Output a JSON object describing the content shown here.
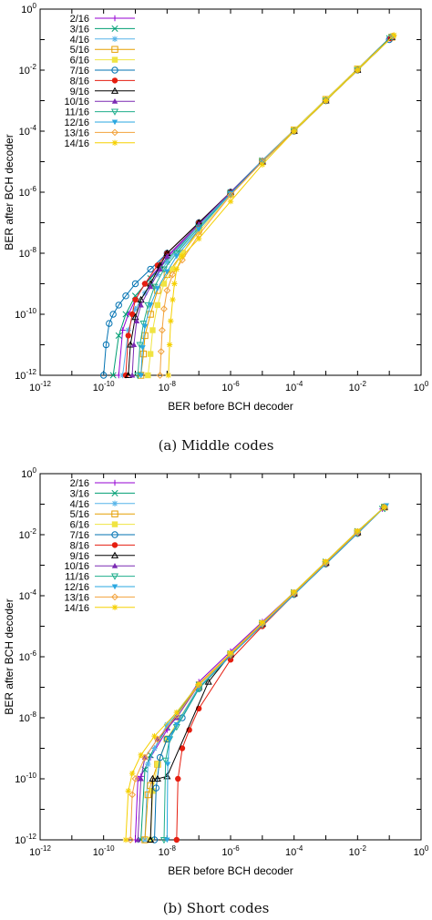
{
  "chart_data": [
    {
      "type": "line",
      "caption": "(a) Middle codes",
      "xlabel": "BER before BCH decoder",
      "ylabel": "BER after BCH decoder",
      "xscale": "log",
      "yscale": "log",
      "xlim": [
        1e-12,
        1
      ],
      "ylim": [
        1e-12,
        1
      ],
      "x_tick_labels": [
        "10-12",
        "10-10",
        "10-8",
        "10-6",
        "10-4",
        "10-2",
        "100"
      ],
      "y_tick_labels": [
        "10-12",
        "10-10",
        "10-8",
        "10-6",
        "10-4",
        "10-2",
        "100"
      ],
      "grid": false,
      "legend_position": "top-left",
      "series": [
        {
          "name": "2/16",
          "color": "#9400d3",
          "marker": "plus",
          "x": [
            3e-10,
            4e-10,
            6e-10,
            1e-09,
            2e-09,
            1e-08,
            1e-07,
            1e-06,
            1e-05,
            0.0001,
            0.001,
            0.01,
            0.1
          ],
          "y": [
            1e-12,
            3e-11,
            1e-10,
            3e-10,
            1e-09,
            7e-09,
            9e-08,
            1e-06,
            1.1e-05,
            0.00011,
            0.0011,
            0.011,
            0.11
          ]
        },
        {
          "name": "3/16",
          "color": "#009e73",
          "marker": "x",
          "x": [
            2e-10,
            3e-10,
            5e-10,
            1e-09,
            3e-09,
            1e-08,
            1e-07,
            1e-06,
            1e-05,
            0.0001,
            0.001,
            0.01,
            0.1
          ],
          "y": [
            1e-12,
            2e-11,
            1e-10,
            4e-10,
            1.5e-09,
            6e-09,
            8e-08,
            1e-06,
            1.1e-05,
            0.00011,
            0.0011,
            0.011,
            0.11
          ]
        },
        {
          "name": "4/16",
          "color": "#56b4e9",
          "marker": "star",
          "x": [
            4e-10,
            6e-10,
            1e-09,
            2e-09,
            5e-09,
            1e-08,
            1e-07,
            1e-06,
            1e-05,
            0.0001,
            0.001,
            0.01,
            0.12
          ],
          "y": [
            1e-12,
            3e-11,
            1.5e-10,
            5e-10,
            2e-09,
            5e-09,
            8e-08,
            1e-06,
            1.1e-05,
            0.00011,
            0.0011,
            0.011,
            0.12
          ]
        },
        {
          "name": "5/16",
          "color": "#e69f00",
          "marker": "square-open",
          "x": [
            1.5e-09,
            1.8e-09,
            2e-09,
            3e-09,
            5e-09,
            1e-08,
            3e-08,
            1e-07,
            1e-06,
            1e-05,
            0.0001,
            0.001,
            0.01,
            0.12
          ],
          "y": [
            1e-12,
            5e-12,
            2e-11,
            1e-10,
            6e-10,
            2e-09,
            1e-08,
            6e-08,
            9e-07,
            1e-05,
            0.00011,
            0.0011,
            0.011,
            0.12
          ]
        },
        {
          "name": "6/16",
          "color": "#f0e442",
          "marker": "square",
          "x": [
            2.5e-09,
            3e-09,
            3.5e-09,
            5e-09,
            8e-09,
            1.5e-08,
            3e-08,
            1e-07,
            1e-06,
            1e-05,
            0.0001,
            0.001,
            0.01,
            0.13
          ],
          "y": [
            1e-12,
            5e-12,
            3e-11,
            2e-10,
            1e-09,
            3e-09,
            1e-08,
            5e-08,
            8e-07,
            1e-05,
            0.00011,
            0.0011,
            0.011,
            0.13
          ]
        },
        {
          "name": "7/16",
          "color": "#0072b2",
          "marker": "circle-open",
          "x": [
            1e-10,
            1.2e-10,
            1.5e-10,
            2e-10,
            3e-10,
            5e-10,
            1e-09,
            3e-09,
            1e-08,
            1e-07,
            1e-06,
            1e-05,
            0.0001,
            0.001,
            0.01,
            0.1
          ],
          "y": [
            1e-12,
            1e-11,
            5e-11,
            1e-10,
            2e-10,
            4e-10,
            1e-09,
            3e-09,
            1e-08,
            1e-07,
            1e-06,
            1e-05,
            0.0001,
            0.001,
            0.01,
            0.1
          ]
        },
        {
          "name": "8/16",
          "color": "#e51e10",
          "marker": "circle",
          "x": [
            5e-10,
            6e-10,
            8e-10,
            1e-09,
            2e-09,
            5e-09,
            1e-08,
            1e-07,
            1e-06,
            1e-05,
            0.0001,
            0.001,
            0.01,
            0.11
          ],
          "y": [
            1e-12,
            2e-11,
            1e-10,
            3e-10,
            1e-09,
            4e-09,
            1e-08,
            1e-07,
            1e-06,
            1e-05,
            0.0001,
            0.001,
            0.01,
            0.11
          ]
        },
        {
          "name": "9/16",
          "color": "#000000",
          "marker": "triangle-open",
          "x": [
            6e-10,
            7e-10,
            1e-09,
            1.5e-09,
            3e-09,
            6e-09,
            1e-08,
            1e-07,
            1e-06,
            1e-05,
            0.0001,
            0.001,
            0.01,
            0.12
          ],
          "y": [
            1e-12,
            1e-11,
            8e-11,
            3e-10,
            1e-09,
            4e-09,
            1e-08,
            1e-07,
            1e-06,
            1e-05,
            0.0001,
            0.001,
            0.01,
            0.12
          ]
        },
        {
          "name": "10/16",
          "color": "#7b2ab3",
          "marker": "triangle",
          "x": [
            8e-10,
            9e-10,
            1.1e-09,
            1.5e-09,
            3e-09,
            6e-09,
            1e-08,
            1e-07,
            1e-06,
            1e-05,
            0.0001,
            0.001,
            0.01,
            0.12
          ],
          "y": [
            1e-12,
            1e-11,
            6e-11,
            2e-10,
            8e-10,
            3e-09,
            8e-09,
            9e-08,
            1e-06,
            1e-05,
            0.0001,
            0.001,
            0.01,
            0.12
          ]
        },
        {
          "name": "11/16",
          "color": "#1fae8c",
          "marker": "triangle-down-open",
          "x": [
            1.2e-09,
            1.4e-09,
            1.8e-09,
            2.5e-09,
            4e-09,
            8e-09,
            2e-08,
            1e-07,
            1e-06,
            1e-05,
            0.0001,
            0.001,
            0.01,
            0.12
          ],
          "y": [
            1e-12,
            1e-11,
            5e-11,
            2e-10,
            8e-10,
            3e-09,
            1e-08,
            7e-08,
            9e-07,
            1e-05,
            0.0001,
            0.001,
            0.01,
            0.12
          ]
        },
        {
          "name": "12/16",
          "color": "#2aa7e0",
          "marker": "triangle-down",
          "x": [
            1.5e-09,
            1.7e-09,
            2e-09,
            3e-09,
            5e-09,
            1e-08,
            2e-08,
            1e-07,
            1e-06,
            1e-05,
            0.0001,
            0.001,
            0.01,
            0.13
          ],
          "y": [
            1e-12,
            8e-12,
            4e-11,
            2e-10,
            7e-10,
            2.5e-09,
            8e-09,
            6e-08,
            9e-07,
            1e-05,
            0.0001,
            0.001,
            0.01,
            0.13
          ]
        },
        {
          "name": "13/16",
          "color": "#f2a23c",
          "marker": "diamond-open",
          "x": [
            6e-09,
            6.5e-09,
            7e-09,
            8e-09,
            1e-08,
            1.5e-08,
            3e-08,
            1e-07,
            1e-06,
            1e-05,
            0.0001,
            0.001,
            0.01,
            0.13
          ],
          "y": [
            1e-12,
            6e-12,
            3e-11,
            1.5e-10,
            6e-10,
            2e-09,
            6e-09,
            4e-08,
            8e-07,
            1e-05,
            0.0001,
            0.001,
            0.01,
            0.13
          ]
        },
        {
          "name": "14/16",
          "color": "#f5d000",
          "marker": "star",
          "x": [
            1.1e-08,
            1.2e-08,
            1.3e-08,
            1.5e-08,
            1.7e-08,
            2e-08,
            3e-08,
            1e-07,
            1e-06,
            1e-05,
            0.0001,
            0.001,
            0.01,
            0.14
          ],
          "y": [
            1e-12,
            1e-11,
            6e-11,
            3e-10,
            1e-09,
            3e-09,
            8e-09,
            3e-08,
            5e-07,
            8e-06,
            0.0001,
            0.001,
            0.01,
            0.14
          ]
        }
      ]
    },
    {
      "type": "line",
      "caption": "(b) Short codes",
      "xlabel": "BER before BCH decoder",
      "ylabel": "BER after BCH decoder",
      "xscale": "log",
      "yscale": "log",
      "xlim": [
        1e-12,
        1
      ],
      "ylim": [
        1e-12,
        1
      ],
      "x_tick_labels": [
        "10-12",
        "10-10",
        "10-8",
        "10-6",
        "10-4",
        "10-2",
        "100"
      ],
      "y_tick_labels": [
        "10-12",
        "10-10",
        "10-8",
        "10-6",
        "10-4",
        "10-2",
        "100"
      ],
      "grid": false,
      "legend_position": "top-left",
      "series": [
        {
          "name": "2/16",
          "color": "#9400d3",
          "marker": "plus",
          "x": [
            1e-09,
            1.2e-09,
            1.5e-09,
            3e-09,
            1e-08,
            1e-07,
            1e-06,
            1e-05,
            0.0001,
            0.001,
            0.01,
            0.06
          ],
          "y": [
            1e-12,
            1e-10,
            1.2e-10,
            5e-10,
            4e-09,
            1.5e-07,
            1.5e-06,
            1.4e-05,
            0.00013,
            0.0012,
            0.012,
            0.07
          ]
        },
        {
          "name": "3/16",
          "color": "#009e73",
          "marker": "x",
          "x": [
            1.5e-09,
            2e-09,
            3e-09,
            1e-08,
            1e-07,
            1e-06,
            1e-05,
            0.0001,
            0.001,
            0.01,
            0.06
          ],
          "y": [
            1e-12,
            2e-10,
            6e-10,
            5e-09,
            1.2e-07,
            1.3e-06,
            1.3e-05,
            0.00013,
            0.0013,
            0.013,
            0.07
          ]
        },
        {
          "name": "4/16",
          "color": "#56b4e9",
          "marker": "star",
          "x": [
            2e-09,
            2.5e-09,
            4e-09,
            1e-08,
            1e-07,
            1e-06,
            1e-05,
            0.0001,
            0.001,
            0.01,
            0.07
          ],
          "y": [
            1e-12,
            3e-10,
            1e-09,
            6e-09,
            1.3e-07,
            1.3e-06,
            1.3e-05,
            0.00013,
            0.0013,
            0.013,
            0.08
          ]
        },
        {
          "name": "5/16",
          "color": "#e69f00",
          "marker": "square-open",
          "x": [
            2e-09,
            2.5e-09,
            3e-09,
            5e-09,
            1e-08,
            1e-07,
            1e-06,
            1e-05,
            0.0001,
            0.001,
            0.01,
            0.07
          ],
          "y": [
            1e-12,
            3e-11,
            6e-11,
            3e-10,
            2e-09,
            1e-07,
            1.2e-06,
            1.2e-05,
            0.00012,
            0.0012,
            0.012,
            0.08
          ]
        },
        {
          "name": "6/16",
          "color": "#f0e442",
          "marker": "square",
          "x": [
            3e-09,
            3.5e-09,
            5e-09,
            1e-08,
            1e-07,
            1e-06,
            1e-05,
            0.0001,
            0.001,
            0.01,
            0.07
          ],
          "y": [
            1e-12,
            4e-11,
            3e-10,
            2e-09,
            1e-07,
            1.2e-06,
            1.2e-05,
            0.00012,
            0.0012,
            0.012,
            0.08
          ]
        },
        {
          "name": "7/16",
          "color": "#0072b2",
          "marker": "circle-open",
          "x": [
            4e-09,
            4.5e-09,
            6e-09,
            1e-08,
            3e-08,
            1e-07,
            1e-06,
            1e-05,
            0.0001,
            0.001,
            0.01,
            0.07
          ],
          "y": [
            1e-12,
            5e-11,
            5e-10,
            2e-09,
            1e-08,
            9e-08,
            1.1e-06,
            1.1e-05,
            0.00011,
            0.0011,
            0.011,
            0.08
          ]
        },
        {
          "name": "8/16",
          "color": "#e51e10",
          "marker": "circle",
          "x": [
            2e-08,
            2.2e-08,
            3e-08,
            5e-08,
            1e-07,
            1e-06,
            1e-05,
            0.0001,
            0.001,
            0.01,
            0.07
          ],
          "y": [
            1e-12,
            1e-10,
            1e-09,
            4e-09,
            2e-08,
            8e-07,
            1e-05,
            0.00011,
            0.0011,
            0.011,
            0.08
          ]
        },
        {
          "name": "9/16",
          "color": "#000000",
          "marker": "triangle-open",
          "x": [
            3e-09,
            3.5e-09,
            5e-09,
            1e-08,
            2e-07,
            1e-06,
            1e-05,
            0.0001,
            0.001,
            0.01,
            0.07
          ],
          "y": [
            1e-12,
            1e-10,
            1e-10,
            1.2e-10,
            1.5e-07,
            1.2e-06,
            1.2e-05,
            0.00012,
            0.0012,
            0.012,
            0.08
          ]
        },
        {
          "name": "10/16",
          "color": "#7b2ab3",
          "marker": "triangle",
          "x": [
            1.2e-09,
            1.5e-09,
            2e-09,
            5e-09,
            2e-08,
            1e-07,
            1e-06,
            1e-05,
            0.0001,
            0.001,
            0.01,
            0.07
          ],
          "y": [
            1e-12,
            1e-10,
            5e-10,
            2e-09,
            1e-08,
            1.2e-07,
            1.2e-06,
            1.2e-05,
            0.00012,
            0.0012,
            0.012,
            0.08
          ]
        },
        {
          "name": "11/16",
          "color": "#1fae8c",
          "marker": "triangle-down-open",
          "x": [
            8e-09,
            9e-09,
            1.2e-08,
            2e-08,
            1e-07,
            1e-06,
            1e-05,
            0.0001,
            0.001,
            0.01,
            0.07
          ],
          "y": [
            1e-12,
            4e-10,
            2e-09,
            5e-09,
            9e-08,
            1.1e-06,
            1.1e-05,
            0.00011,
            0.0011,
            0.011,
            0.08
          ]
        },
        {
          "name": "12/16",
          "color": "#2aa7e0",
          "marker": "triangle-down",
          "x": [
            1e-08,
            1.05e-08,
            1.2e-08,
            2e-08,
            1e-07,
            1e-06,
            1e-05,
            0.0001,
            0.001,
            0.01,
            0.08
          ],
          "y": [
            1e-12,
            3e-10,
            2e-09,
            6e-09,
            1e-07,
            1.1e-06,
            1.1e-05,
            0.00011,
            0.0011,
            0.011,
            0.09
          ]
        },
        {
          "name": "13/16",
          "color": "#f2a23c",
          "marker": "diamond-open",
          "x": [
            7e-10,
            8e-10,
            1e-09,
            2e-09,
            5e-09,
            2e-08,
            1e-07,
            1e-06,
            1e-05,
            0.0001,
            0.001,
            0.01,
            0.07
          ],
          "y": [
            1e-12,
            3e-11,
            1e-10,
            5e-10,
            2e-09,
            1.2e-08,
            1.2e-07,
            1.2e-06,
            1.2e-05,
            0.00012,
            0.0012,
            0.012,
            0.08
          ]
        },
        {
          "name": "14/16",
          "color": "#f5d000",
          "marker": "star",
          "x": [
            5e-10,
            6e-10,
            8e-10,
            1.5e-09,
            4e-09,
            2e-08,
            1e-07,
            1e-06,
            1e-05,
            0.0001,
            0.001,
            0.01,
            0.07
          ],
          "y": [
            1e-12,
            4e-11,
            1.5e-10,
            6e-10,
            2.5e-09,
            1.5e-08,
            1.3e-07,
            1.3e-06,
            1.3e-05,
            0.00013,
            0.0013,
            0.013,
            0.08
          ]
        }
      ]
    }
  ]
}
